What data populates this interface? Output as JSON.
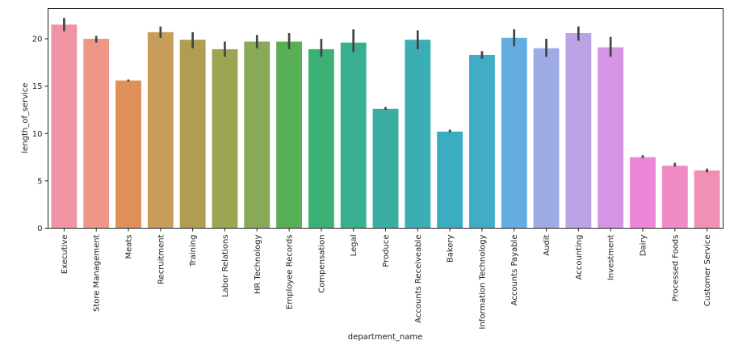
{
  "chart_data": {
    "type": "bar",
    "xlabel": "department_name",
    "ylabel": "length_of_service",
    "ylim": [
      0,
      23.2
    ],
    "yticks": [
      0,
      5,
      10,
      15,
      20
    ],
    "grid": false,
    "categories": [
      "Executive",
      "Store Management",
      "Meats",
      "Recruitment",
      "Training",
      "Labor Relations",
      "HR Technology",
      "Employee Records",
      "Compensation",
      "Legal",
      "Produce",
      "Accounts Receiveable",
      "Bakery",
      "Information Technology",
      "Accounts Payable",
      "Audit",
      "Accounting",
      "Investment",
      "Dairy",
      "Processed Foods",
      "Customer Service"
    ],
    "values": [
      21.5,
      20.0,
      15.6,
      20.7,
      19.9,
      18.9,
      19.7,
      19.7,
      18.9,
      19.6,
      12.6,
      19.9,
      10.2,
      18.3,
      20.1,
      19.0,
      20.6,
      19.1,
      7.5,
      6.6,
      6.1
    ],
    "error_low": [
      20.8,
      19.6,
      15.5,
      20.1,
      19.0,
      18.1,
      19.0,
      18.9,
      18.1,
      18.6,
      12.5,
      18.9,
      10.1,
      17.9,
      19.2,
      18.1,
      19.8,
      18.1,
      7.4,
      6.5,
      5.9
    ],
    "error_high": [
      22.2,
      20.3,
      15.7,
      21.3,
      20.7,
      19.7,
      20.4,
      20.6,
      20.0,
      21.0,
      12.8,
      20.9,
      10.4,
      18.7,
      21.0,
      20.0,
      21.3,
      20.2,
      7.7,
      6.9,
      6.3
    ],
    "colors": [
      "#f093a4",
      "#ef9787",
      "#df8f5a",
      "#c89c5a",
      "#b09d52",
      "#9da452",
      "#88a957",
      "#58b055",
      "#3db075",
      "#38af8f",
      "#39ad9f",
      "#3aaeb2",
      "#3cacc1",
      "#40acc8",
      "#62aee0",
      "#9eabe6",
      "#bba3e6",
      "#d694e4",
      "#ec86d6",
      "#f08bc5",
      "#f090b5"
    ],
    "error_color": "#444444"
  }
}
